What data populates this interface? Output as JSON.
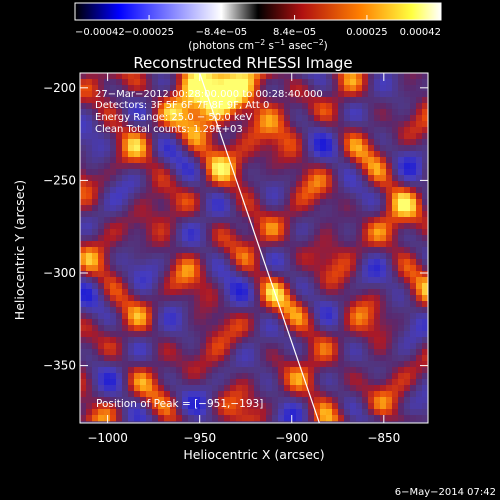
{
  "chart_data": {
    "type": "heatmap",
    "title": "Reconstructed RHESSI Image",
    "xlabel": "Heliocentric X (arcsec)",
    "ylabel": "Heliocentric Y (arcsec)",
    "xlim": [
      -1015,
      -826
    ],
    "ylim": [
      -381,
      -192
    ],
    "x_ticks": [
      -1000,
      -950,
      -900,
      -850
    ],
    "y_ticks": [
      -350,
      -300,
      -250,
      -200
    ],
    "x_tick_labels": [
      "−1000",
      "−950",
      "−900",
      "−850"
    ],
    "y_tick_labels": [
      "−350",
      "−300",
      "−250",
      "−200"
    ],
    "colorbar": {
      "range": [
        -0.00042,
        0.00042
      ],
      "ticks": [
        -0.00042,
        -0.00025,
        -8.4e-05,
        8.4e-05,
        0.00025,
        0.00042
      ],
      "tick_labels": [
        "−0.00042",
        "−0.00025",
        "−8.4e−05",
        "8.4e−05",
        "0.00025",
        "0.00042"
      ],
      "units_prefix": "(photons cm",
      "units_exp1": "−2",
      "units_mid": " s",
      "units_exp2": "−1",
      "units_mid2": " asec",
      "units_exp3": "−2",
      "units_suffix": ")"
    },
    "annotations": [
      "27−Mar−2012 00:28:00.000 to 00:28:40.000",
      "Detectors: 3F 5F 6F 7F 8F 9F, Att 0",
      "Energy Range: 25.0 − 50.0 keV",
      "Clean    Total counts: 1.29E+03"
    ],
    "peak_label": "Position of Peak = [−951,−193]",
    "peak_position": [
      -951,
      -193
    ],
    "limb_line": [
      [
        -950,
        -192
      ],
      [
        -885,
        -381
      ]
    ],
    "colors": {
      "colormap": [
        "#000000",
        "#0000ff",
        "#5a3a8a",
        "#c02020",
        "#ff8000",
        "#ffff40",
        "#ffffff"
      ],
      "background_tone": "#4a3678"
    },
    "footer_date": "6−May−2014 07:42"
  }
}
